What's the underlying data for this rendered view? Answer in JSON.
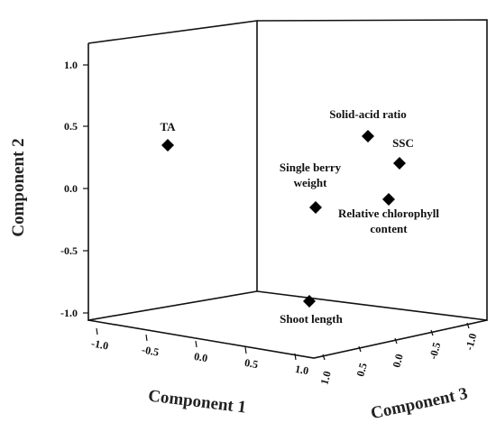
{
  "chart_data": {
    "type": "scatter",
    "title": "",
    "axes": {
      "component1": {
        "label": "Component 1",
        "ticks": [
          "-1.0",
          "-0.5",
          "0.0",
          "0.5",
          "1.0"
        ]
      },
      "component2": {
        "label": "Component 2",
        "ticks": [
          "1.0",
          "0.5",
          "0.0",
          "-0.5",
          "-1.0"
        ]
      },
      "component3": {
        "label": "Component 3",
        "ticks": [
          "1.0",
          "0.5",
          "0.0",
          "-0.5",
          "-1.0"
        ]
      }
    },
    "points": [
      {
        "label": "TA",
        "component1": -0.5,
        "component2": 0.35,
        "component3": 0.55
      },
      {
        "label": "Solid-acid ratio",
        "component1": 0.6,
        "component2": 0.75,
        "component3": 0.7
      },
      {
        "label": "SSC",
        "component1": 0.65,
        "component2": 0.6,
        "component3": 0.6
      },
      {
        "label": "Single berry weight",
        "component1": 0.5,
        "component2": 0.05,
        "component3": 0.65
      },
      {
        "label": "Relative chlorophyll content",
        "component1": 0.85,
        "component2": 0.1,
        "component3": 0.3
      },
      {
        "label": "Shoot length",
        "component1": 0.8,
        "component2": -0.75,
        "component3": 0.3
      }
    ]
  }
}
